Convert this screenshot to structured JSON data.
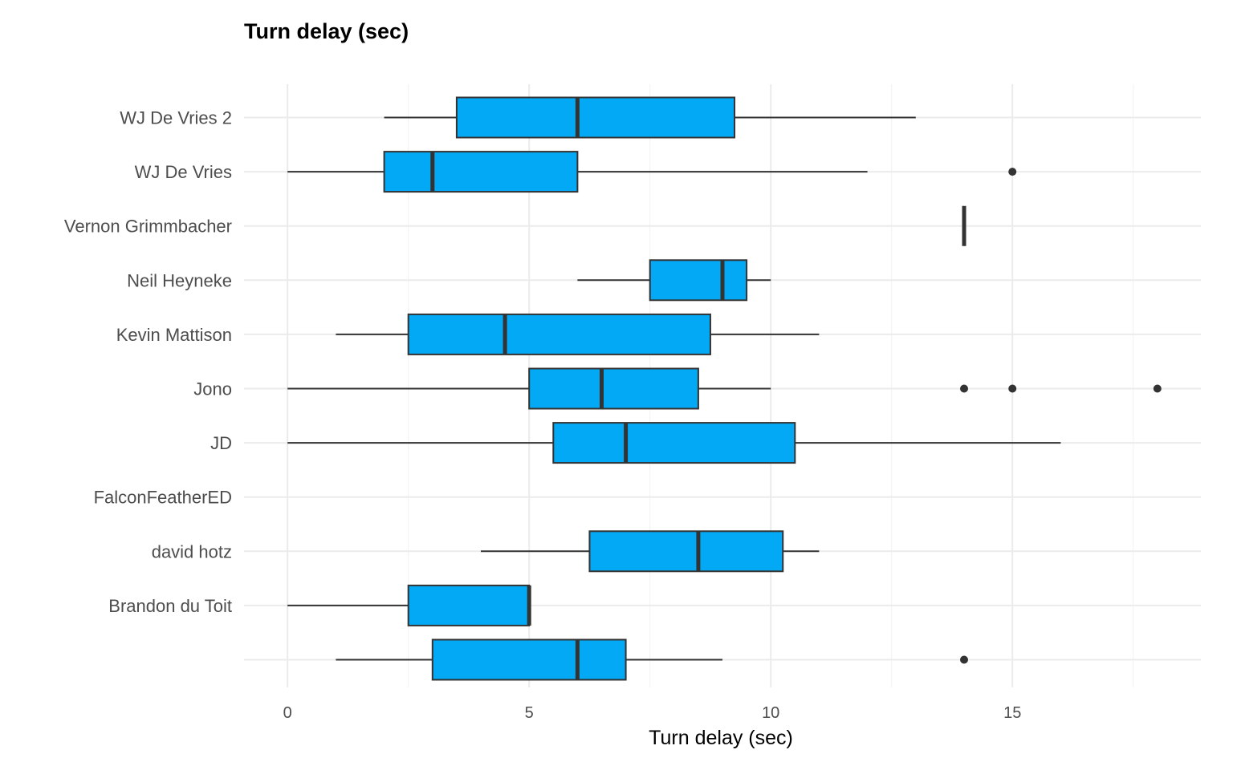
{
  "chart_data": {
    "type": "boxplot",
    "orientation": "horizontal",
    "title": "Turn delay (sec)",
    "xlabel": "Turn delay (sec)",
    "ylabel": "",
    "xlim": [
      -0.9,
      18.9
    ],
    "x_ticks": [
      0,
      5,
      10,
      15
    ],
    "grid": true,
    "fill_color": "#03A9F4",
    "categories": [
      "",
      "Brandon du Toit",
      "david hotz",
      "FalconFeatherED",
      "JD",
      "Jono",
      "Kevin Mattison",
      "Neil Heyneke",
      "Vernon Grimmbacher",
      "WJ De Vries",
      "WJ De Vries 2"
    ],
    "boxes": [
      {
        "category": "",
        "min": 1,
        "q1": 3,
        "median": 6,
        "q3": 7,
        "max": 9,
        "outliers": [
          14
        ]
      },
      {
        "category": "Brandon du Toit",
        "min": 0,
        "q1": 2.5,
        "median": 5,
        "q3": 5,
        "max": 5,
        "outliers": []
      },
      {
        "category": "david hotz",
        "min": 4,
        "q1": 6.25,
        "median": 8.5,
        "q3": 10.25,
        "max": 11,
        "outliers": []
      },
      {
        "category": "FalconFeatherED",
        "min": null,
        "q1": null,
        "median": null,
        "q3": null,
        "max": null,
        "outliers": []
      },
      {
        "category": "JD",
        "min": 0,
        "q1": 5.5,
        "median": 7,
        "q3": 10.5,
        "max": 16,
        "outliers": []
      },
      {
        "category": "Jono",
        "min": 0,
        "q1": 5,
        "median": 6.5,
        "q3": 8.5,
        "max": 10,
        "outliers": [
          14,
          15,
          18
        ]
      },
      {
        "category": "Kevin Mattison",
        "min": 1,
        "q1": 2.5,
        "median": 4.5,
        "q3": 8.75,
        "max": 11,
        "outliers": []
      },
      {
        "category": "Neil Heyneke",
        "min": 6,
        "q1": 7.5,
        "median": 9,
        "q3": 9.5,
        "max": 10,
        "outliers": []
      },
      {
        "category": "Vernon Grimmbacher",
        "min": 14,
        "q1": 14,
        "median": 14,
        "q3": 14,
        "max": 14,
        "outliers": []
      },
      {
        "category": "WJ De Vries",
        "min": 0,
        "q1": 2,
        "median": 3,
        "q3": 6,
        "max": 12,
        "outliers": [
          15
        ]
      },
      {
        "category": "WJ De Vries 2",
        "min": 2,
        "q1": 3.5,
        "median": 6,
        "q3": 9.25,
        "max": 13,
        "outliers": []
      }
    ]
  }
}
